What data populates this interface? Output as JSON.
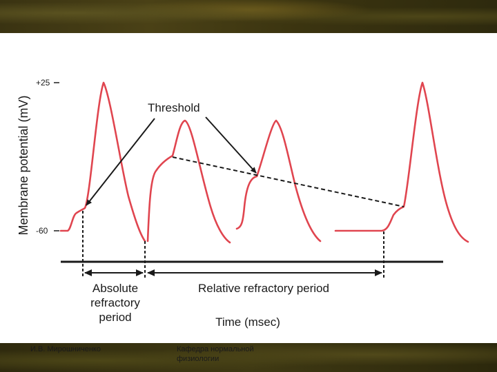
{
  "diagram": {
    "y_axis_label": "Membrane potential (mV)",
    "y_ticks": [
      "+25",
      "-60"
    ],
    "threshold_label": "Threshold",
    "absolute_period_label": [
      "Absolute",
      "refractory",
      "period"
    ],
    "relative_period_label": "Relative refractory period",
    "x_axis_label": "Time (msec)",
    "colors": {
      "trace": "#e0454f",
      "ink": "#1a1a1a"
    }
  },
  "footer": {
    "author": "И.В. Мирошниченко",
    "department": "Кафедра нормальной физиологии"
  }
}
